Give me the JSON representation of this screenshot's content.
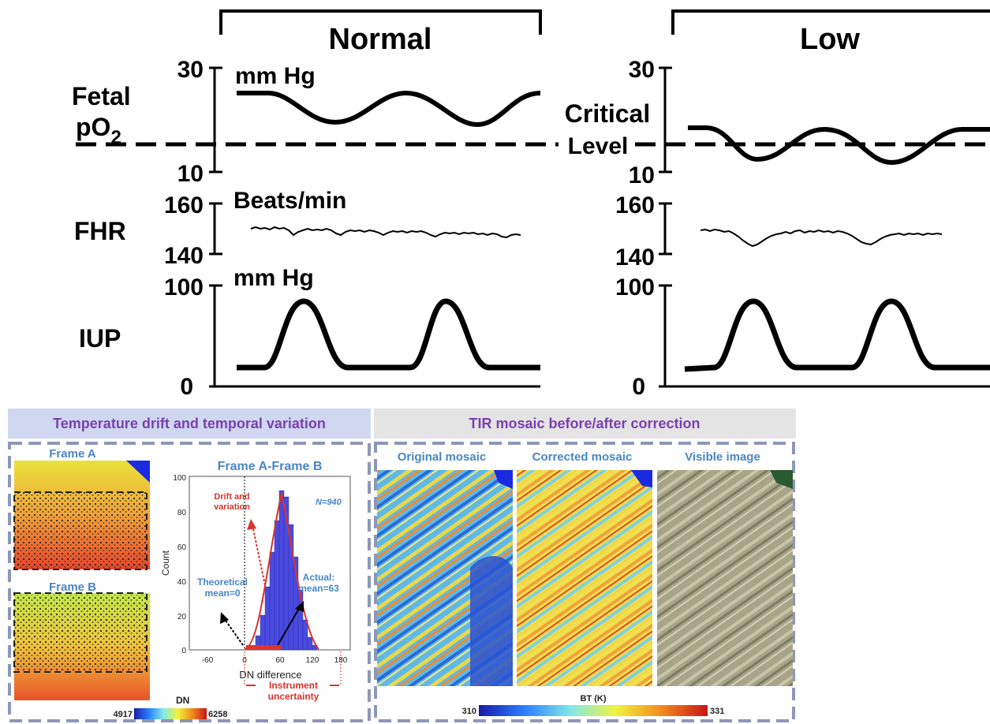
{
  "top_figure": {
    "panel_titles": [
      "Normal",
      "Low"
    ],
    "rows": [
      {
        "label_line1": "Fetal",
        "label_line2": "pO",
        "label_sub": "2",
        "unit": "mm Hg",
        "tick_high": "30",
        "tick_low": "10"
      },
      {
        "label_line1": "FHR",
        "unit": "Beats/min",
        "tick_high": "160",
        "tick_low": "140"
      },
      {
        "label_line1": "IUP",
        "unit": "mm Hg",
        "tick_high": "100",
        "tick_low": "0"
      }
    ],
    "critical_label_line1": "Critical",
    "critical_label_line2": "Level"
  },
  "bottom_figure": {
    "left_header": "Temperature drift and temporal variation",
    "right_header": "TIR mosaic before/after correction",
    "frame_a": "Frame A",
    "frame_b": "Frame B",
    "hist_title": "Frame A-Frame B",
    "hist_ylabel": "Count",
    "hist_xlabel": "DN difference",
    "hist_yticks": [
      "100",
      "80",
      "60",
      "40",
      "20",
      "0"
    ],
    "hist_xticks": [
      "-60",
      "0",
      "60",
      "120",
      "180"
    ],
    "n_label": "N=940",
    "drift_line1": "Drift and",
    "drift_line2": "variation",
    "theoretical_line1": "Theoretical",
    "theoretical_line2": "mean=0",
    "actual_line1": "Actual:",
    "actual_line2": "mean=63",
    "instrument_line1": "Instrument",
    "instrument_line2": "uncertainty",
    "dn_label": "DN",
    "dn_min": "4917",
    "dn_max": "6258",
    "mosaic_titles": [
      "Original mosaic",
      "Corrected mosaic",
      "Visible image"
    ],
    "bt_label": "BT (K)",
    "bt_min": "310",
    "bt_max": "331"
  }
}
